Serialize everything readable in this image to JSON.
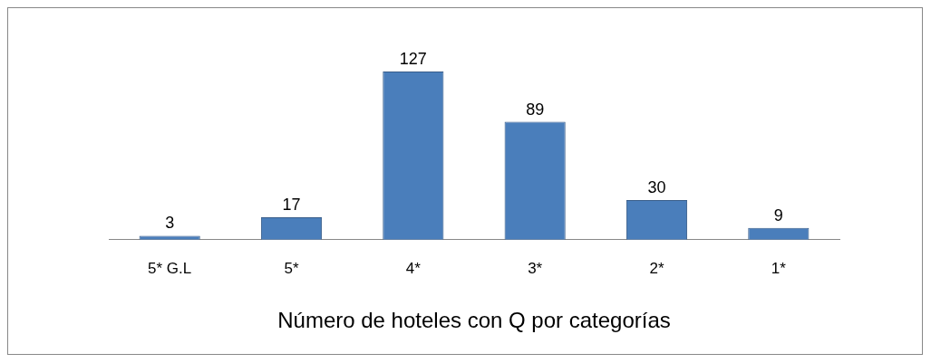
{
  "chart_data": {
    "type": "bar",
    "title": "Número de hoteles con Q por categorías",
    "categories": [
      "5* G.L",
      "5*",
      "4*",
      "3*",
      "2*",
      "1*"
    ],
    "values": [
      3,
      17,
      127,
      89,
      30,
      9
    ],
    "color": "#4a7ebb",
    "data_labels": true,
    "grid": false,
    "legend": false
  }
}
